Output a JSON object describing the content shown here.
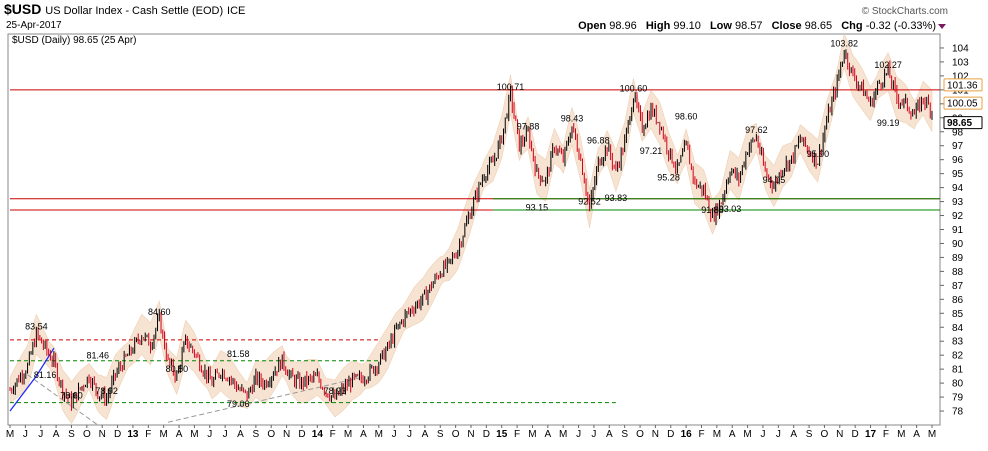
{
  "header": {
    "symbol": "$USD",
    "name": "US Dollar Index - Cash Settle (EOD)",
    "exchange": "ICE",
    "date": "25-Apr-2017",
    "brand": "© StockCharts.com",
    "ohlc": [
      {
        "label": "Open",
        "value": "98.96"
      },
      {
        "label": "High",
        "value": "99.10"
      },
      {
        "label": "Low",
        "value": "98.57"
      },
      {
        "label": "Close",
        "value": "98.65"
      },
      {
        "label": "Chg",
        "value": "-0.32 (-0.33%)"
      }
    ]
  },
  "chart_data": {
    "type": "candlestick",
    "legend": "$USD (Daily) 98.65 (25 Apr)",
    "ylim": [
      77,
      105
    ],
    "y_ticks": [
      78,
      79,
      80,
      81,
      82,
      83,
      84,
      85,
      86,
      87,
      88,
      89,
      90,
      91,
      92,
      93,
      94,
      95,
      96,
      97,
      98,
      99,
      100,
      101,
      102,
      103,
      104
    ],
    "x_months": [
      "M",
      "J",
      "J",
      "A",
      "S",
      "O",
      "N",
      "D",
      "13",
      "F",
      "M",
      "A",
      "M",
      "J",
      "J",
      "A",
      "S",
      "O",
      "N",
      "D",
      "14",
      "F",
      "M",
      "A",
      "M",
      "J",
      "J",
      "A",
      "S",
      "O",
      "N",
      "D",
      "15",
      "F",
      "M",
      "A",
      "M",
      "J",
      "J",
      "A",
      "S",
      "O",
      "N",
      "D",
      "16",
      "F",
      "M",
      "A",
      "M",
      "J",
      "J",
      "A",
      "S",
      "O",
      "N",
      "D",
      "17",
      "F",
      "M",
      "A",
      "M"
    ],
    "x_bold": [
      "13",
      "14",
      "15",
      "16",
      "17"
    ],
    "series": [
      {
        "name": "price",
        "points": [
          [
            0,
            79.5
          ],
          [
            2,
            81.2
          ],
          [
            3,
            83.5
          ],
          [
            4,
            82.5
          ],
          [
            5,
            81.5
          ],
          [
            6,
            79.5
          ],
          [
            7,
            78.6
          ],
          [
            8,
            79.6
          ],
          [
            9,
            80.5
          ],
          [
            10,
            79.3
          ],
          [
            11,
            78.9
          ],
          [
            12,
            80.6
          ],
          [
            13,
            81.6
          ],
          [
            14,
            82.5
          ],
          [
            15,
            83.5
          ],
          [
            16,
            82.8
          ],
          [
            17,
            84.6
          ],
          [
            18,
            81.5
          ],
          [
            19,
            80.5
          ],
          [
            20,
            83.0
          ],
          [
            21,
            82.2
          ],
          [
            22,
            81.0
          ],
          [
            23,
            80.0
          ],
          [
            24,
            80.9
          ],
          [
            25,
            80.4
          ],
          [
            26,
            79.6
          ],
          [
            27,
            79.1
          ],
          [
            28,
            80.3
          ],
          [
            29,
            80.0
          ],
          [
            30,
            80.8
          ],
          [
            31,
            81.6
          ],
          [
            32,
            80.4
          ],
          [
            33,
            80.0
          ],
          [
            34,
            80.2
          ],
          [
            35,
            80.4
          ],
          [
            36,
            79.4
          ],
          [
            37,
            78.9
          ],
          [
            38,
            79.6
          ],
          [
            39,
            80.2
          ],
          [
            40,
            80.3
          ],
          [
            41,
            80.8
          ],
          [
            42,
            81.5
          ],
          [
            43,
            82.5
          ],
          [
            44,
            83.8
          ],
          [
            45,
            84.8
          ],
          [
            46,
            85.5
          ],
          [
            47,
            86.0
          ],
          [
            48,
            87.0
          ],
          [
            49,
            88.0
          ],
          [
            50,
            88.5
          ],
          [
            51,
            89.6
          ],
          [
            52,
            91.5
          ],
          [
            53,
            93.3
          ],
          [
            54,
            95.0
          ],
          [
            55,
            95.8
          ],
          [
            56,
            97.6
          ],
          [
            57,
            100.7
          ],
          [
            58,
            97.0
          ],
          [
            59,
            97.9
          ],
          [
            60,
            95.0
          ],
          [
            61,
            94.5
          ],
          [
            62,
            97.0
          ],
          [
            63,
            96.0
          ],
          [
            64,
            98.4
          ],
          [
            65,
            96.0
          ],
          [
            66,
            92.5
          ],
          [
            67,
            95.8
          ],
          [
            68,
            96.9
          ],
          [
            69,
            95.2
          ],
          [
            70,
            97.2
          ],
          [
            71,
            100.6
          ],
          [
            72,
            98.3
          ],
          [
            73,
            99.6
          ],
          [
            74,
            98.6
          ],
          [
            75,
            96.6
          ],
          [
            76,
            95.3
          ],
          [
            77,
            97.0
          ],
          [
            78,
            94.3
          ],
          [
            79,
            93.8
          ],
          [
            80,
            91.9
          ],
          [
            81,
            93.0
          ],
          [
            82,
            95.3
          ],
          [
            83,
            94.6
          ],
          [
            84,
            96.8
          ],
          [
            85,
            97.6
          ],
          [
            86,
            95.1
          ],
          [
            87,
            94.1
          ],
          [
            88,
            95.5
          ],
          [
            89,
            96.0
          ],
          [
            90,
            97.5
          ],
          [
            91,
            96.6
          ],
          [
            92,
            95.9
          ],
          [
            93,
            98.8
          ],
          [
            94,
            101.0
          ],
          [
            95,
            103.8
          ],
          [
            96,
            102.0
          ],
          [
            97,
            101.1
          ],
          [
            98,
            100.0
          ],
          [
            99,
            101.5
          ],
          [
            100,
            102.3
          ],
          [
            101,
            100.4
          ],
          [
            102,
            100.0
          ],
          [
            103,
            99.2
          ],
          [
            104,
            100.4
          ],
          [
            105,
            99.5
          ],
          [
            106,
            98.65
          ]
        ]
      },
      {
        "name": "mavg",
        "points": [
          [
            0,
            78.0
          ],
          [
            3,
            80.5
          ],
          [
            5,
            82.5
          ]
        ]
      }
    ],
    "points_per_month": 1.75,
    "annotations": [
      {
        "text": "83.54",
        "x": 3,
        "y": 83.54
      },
      {
        "text": "81.16",
        "x": 4,
        "y": 81.16
      },
      {
        "text": "78.60",
        "x": 7,
        "y": 78.6
      },
      {
        "text": "81.46",
        "x": 10,
        "y": 81.46
      },
      {
        "text": "78.92",
        "x": 11,
        "y": 78.92
      },
      {
        "text": "84.60",
        "x": 17,
        "y": 84.6
      },
      {
        "text": "80.50",
        "x": 19,
        "y": 80.5
      },
      {
        "text": "81.58",
        "x": 26,
        "y": 81.58
      },
      {
        "text": "79.06",
        "x": 26,
        "y": 79.06
      },
      {
        "text": "78.93",
        "x": 37,
        "y": 78.93
      },
      {
        "text": "100.71",
        "x": 57,
        "y": 100.71
      },
      {
        "text": "97.88",
        "x": 59,
        "y": 97.88
      },
      {
        "text": "93.15",
        "x": 60,
        "y": 93.15
      },
      {
        "text": "98.43",
        "x": 64,
        "y": 98.43
      },
      {
        "text": "96.88",
        "x": 67,
        "y": 96.88
      },
      {
        "text": "92.52",
        "x": 66,
        "y": 92.52
      },
      {
        "text": "93.83",
        "x": 69,
        "y": 93.83
      },
      {
        "text": "100.60",
        "x": 71,
        "y": 100.6
      },
      {
        "text": "97.21",
        "x": 73,
        "y": 97.21
      },
      {
        "text": "98.60",
        "x": 77,
        "y": 98.6
      },
      {
        "text": "95.28",
        "x": 75,
        "y": 95.28
      },
      {
        "text": "91.88",
        "x": 80,
        "y": 91.88
      },
      {
        "text": "93.03",
        "x": 82,
        "y": 93.03
      },
      {
        "text": "97.62",
        "x": 85,
        "y": 97.62
      },
      {
        "text": "94.05",
        "x": 87,
        "y": 94.05
      },
      {
        "text": "95.90",
        "x": 92,
        "y": 95.9
      },
      {
        "text": "103.82",
        "x": 95,
        "y": 103.82
      },
      {
        "text": "102.27",
        "x": 100,
        "y": 102.27
      },
      {
        "text": "99.19",
        "x": 100,
        "y": 99.19
      }
    ],
    "h_lines": [
      {
        "y": 101.0,
        "color": "#cc0000",
        "style": "solid",
        "x0": 0,
        "x1": 106
      },
      {
        "y": 93.2,
        "color": "#cc0000",
        "style": "solid",
        "x0": 0,
        "x1": 106
      },
      {
        "y": 92.4,
        "color": "#cc0000",
        "style": "solid",
        "x0": 0,
        "x1": 55
      },
      {
        "y": 93.2,
        "color": "#008800",
        "style": "solid",
        "x0": 55,
        "x1": 106
      },
      {
        "y": 92.4,
        "color": "#008800",
        "style": "solid",
        "x0": 55,
        "x1": 106
      },
      {
        "y": 83.1,
        "color": "#cc0000",
        "style": "dashed",
        "x0": 0,
        "x1": 42
      },
      {
        "y": 81.6,
        "color": "#008800",
        "style": "dashed",
        "x0": 0,
        "x1": 42
      },
      {
        "y": 78.6,
        "color": "#008800",
        "style": "dashed",
        "x0": 0,
        "x1": 69
      }
    ],
    "trendlines": [
      {
        "x0": 2,
        "y0": 80.6,
        "x1": 10,
        "y1": 77.0,
        "color": "#999999"
      },
      {
        "x0": 18,
        "y0": 77.2,
        "x1": 40,
        "y1": 80.4,
        "color": "#999999"
      }
    ],
    "price_tags": [
      {
        "text": "101.36",
        "y": 101.36,
        "color": "#e8a040"
      },
      {
        "text": "100.05",
        "y": 100.05,
        "color": "#e8a040"
      },
      {
        "text": "98.65",
        "y": 98.65,
        "color": "#000000"
      }
    ]
  }
}
